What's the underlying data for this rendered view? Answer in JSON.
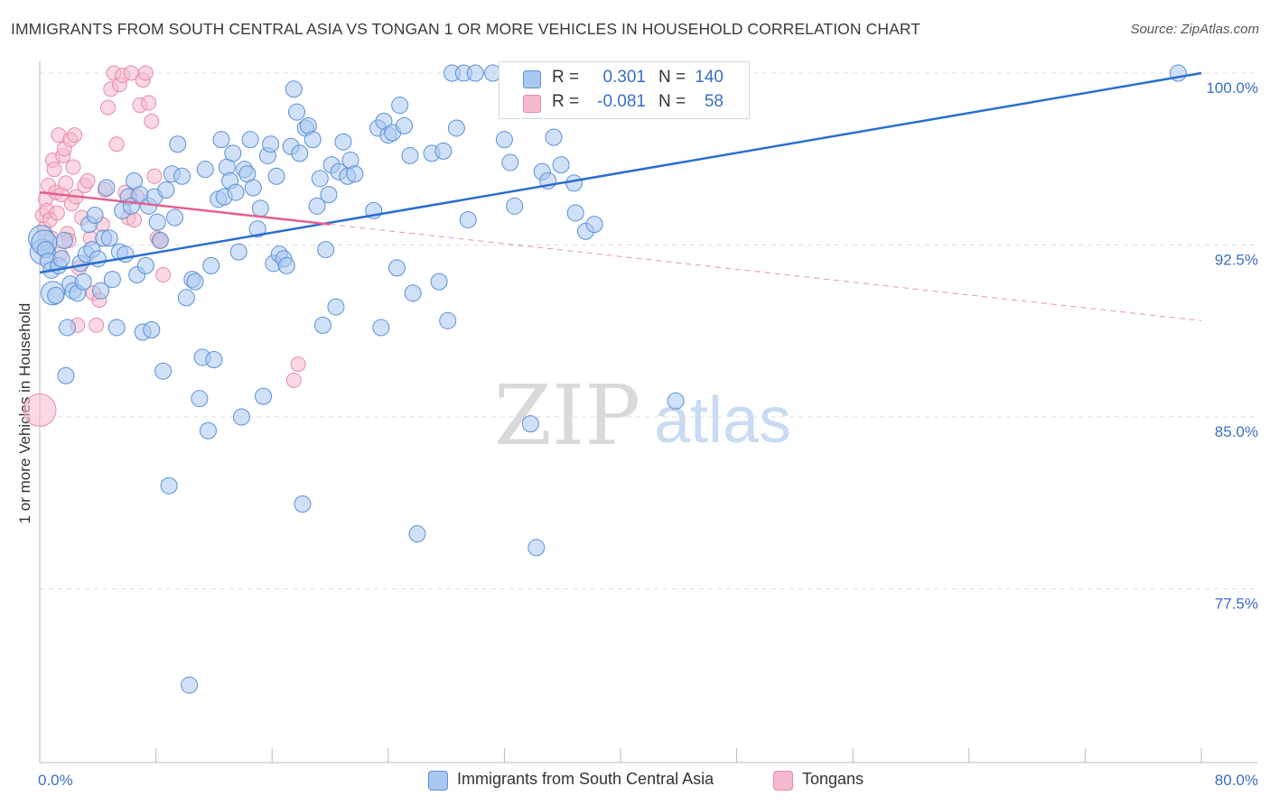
{
  "header": {
    "title": "IMMIGRANTS FROM SOUTH CENTRAL ASIA VS TONGAN 1 OR MORE VEHICLES IN HOUSEHOLD CORRELATION CHART",
    "source": "Source: ZipAtlas.com"
  },
  "watermark": {
    "zip": "ZIP",
    "atlas": "atlas"
  },
  "legend": {
    "rows": [
      {
        "r_label": "R =",
        "r_value": "0.301",
        "n_label": "N =",
        "n_value": "140"
      },
      {
        "r_label": "R =",
        "r_value": "-0.081",
        "n_label": "N =",
        "n_value": "58"
      }
    ]
  },
  "colors": {
    "blue_fill": "#a9c8f0",
    "blue_stroke": "#5b8fd6",
    "blue_line": "#2a6dd0",
    "pink_fill": "#f6b9cc",
    "pink_stroke": "#e88aa6",
    "pink_line": "#e4608e",
    "tick_label": "#3a6fc4",
    "grid": "#dddddd"
  },
  "chart_data": {
    "type": "scatter",
    "title": "IMMIGRANTS FROM SOUTH CENTRAL ASIA VS TONGAN 1 OR MORE VEHICLES IN HOUSEHOLD CORRELATION CHART",
    "xlabel": "",
    "ylabel": "1 or more Vehicles in Household",
    "xlim": [
      0,
      80
    ],
    "ylim": [
      71.5,
      101.5
    ],
    "x_tick_labels": [
      "0.0%",
      "80.0%"
    ],
    "y_ticks": [
      77.5,
      85.0,
      92.5,
      100.0
    ],
    "y_tick_labels": [
      "77.5%",
      "85.0%",
      "92.5%",
      "100.0%"
    ],
    "grid": true,
    "legend_position": "top-center",
    "series": [
      {
        "name": "Immigrants from South Central Asia",
        "color": "#a9c8f0",
        "trend": {
          "x": [
            0,
            80
          ],
          "y": [
            91.3,
            100.0
          ]
        },
        "points": [
          [
            0.1,
            92.8
          ],
          [
            0.2,
            92.2
          ],
          [
            0.3,
            92.6
          ],
          [
            0.4,
            92.3
          ],
          [
            0.6,
            91.8
          ],
          [
            0.8,
            91.4
          ],
          [
            0.9,
            90.4
          ],
          [
            1.1,
            90.3
          ],
          [
            1.3,
            91.6
          ],
          [
            1.5,
            91.9
          ],
          [
            1.7,
            92.7
          ],
          [
            1.8,
            86.8
          ],
          [
            1.9,
            88.9
          ],
          [
            2.1,
            90.8
          ],
          [
            2.3,
            90.5
          ],
          [
            2.6,
            90.4
          ],
          [
            2.8,
            91.7
          ],
          [
            3.0,
            90.9
          ],
          [
            3.2,
            92.1
          ],
          [
            3.4,
            93.4
          ],
          [
            3.6,
            92.3
          ],
          [
            3.8,
            93.8
          ],
          [
            4.0,
            91.9
          ],
          [
            4.2,
            90.5
          ],
          [
            4.4,
            92.8
          ],
          [
            4.6,
            95.0
          ],
          [
            4.8,
            92.8
          ],
          [
            5.0,
            91.0
          ],
          [
            5.3,
            88.9
          ],
          [
            5.5,
            92.2
          ],
          [
            5.7,
            94.0
          ],
          [
            5.9,
            92.1
          ],
          [
            6.1,
            94.6
          ],
          [
            6.3,
            94.2
          ],
          [
            6.5,
            95.3
          ],
          [
            6.7,
            91.2
          ],
          [
            6.9,
            94.7
          ],
          [
            7.1,
            88.7
          ],
          [
            7.3,
            91.6
          ],
          [
            7.5,
            94.2
          ],
          [
            7.7,
            88.8
          ],
          [
            7.9,
            94.6
          ],
          [
            8.1,
            93.5
          ],
          [
            8.3,
            92.7
          ],
          [
            8.5,
            87.0
          ],
          [
            8.7,
            94.9
          ],
          [
            8.9,
            82.0
          ],
          [
            9.1,
            95.6
          ],
          [
            9.3,
            93.7
          ],
          [
            9.5,
            96.9
          ],
          [
            9.8,
            95.5
          ],
          [
            10.1,
            90.2
          ],
          [
            10.3,
            73.3
          ],
          [
            10.5,
            91.0
          ],
          [
            10.7,
            90.9
          ],
          [
            11.0,
            85.8
          ],
          [
            11.2,
            87.6
          ],
          [
            11.4,
            95.8
          ],
          [
            11.6,
            84.4
          ],
          [
            11.8,
            91.6
          ],
          [
            12.0,
            87.5
          ],
          [
            12.3,
            94.5
          ],
          [
            12.5,
            97.1
          ],
          [
            12.7,
            94.6
          ],
          [
            12.9,
            95.9
          ],
          [
            13.1,
            95.3
          ],
          [
            13.3,
            96.5
          ],
          [
            13.5,
            94.8
          ],
          [
            13.7,
            92.2
          ],
          [
            13.9,
            85.0
          ],
          [
            14.1,
            95.8
          ],
          [
            14.3,
            95.6
          ],
          [
            14.5,
            97.1
          ],
          [
            14.7,
            95.0
          ],
          [
            15.0,
            93.2
          ],
          [
            15.2,
            94.1
          ],
          [
            15.4,
            85.9
          ],
          [
            15.7,
            96.4
          ],
          [
            15.9,
            96.9
          ],
          [
            16.1,
            91.7
          ],
          [
            16.3,
            95.5
          ],
          [
            16.5,
            92.1
          ],
          [
            16.8,
            91.9
          ],
          [
            17.0,
            91.6
          ],
          [
            17.3,
            96.8
          ],
          [
            17.5,
            99.3
          ],
          [
            17.7,
            98.3
          ],
          [
            17.9,
            96.5
          ],
          [
            18.1,
            81.2
          ],
          [
            18.3,
            97.6
          ],
          [
            18.5,
            97.7
          ],
          [
            18.8,
            97.1
          ],
          [
            19.1,
            94.2
          ],
          [
            19.3,
            95.4
          ],
          [
            19.5,
            89.0
          ],
          [
            19.7,
            92.3
          ],
          [
            19.9,
            94.7
          ],
          [
            20.1,
            96.0
          ],
          [
            20.4,
            89.8
          ],
          [
            20.6,
            95.7
          ],
          [
            20.9,
            97.0
          ],
          [
            21.2,
            95.5
          ],
          [
            21.4,
            96.2
          ],
          [
            21.7,
            95.6
          ],
          [
            23.0,
            94.0
          ],
          [
            23.3,
            97.6
          ],
          [
            23.5,
            88.9
          ],
          [
            23.7,
            97.9
          ],
          [
            24.0,
            97.3
          ],
          [
            24.3,
            97.4
          ],
          [
            24.6,
            91.5
          ],
          [
            24.8,
            98.6
          ],
          [
            25.1,
            97.7
          ],
          [
            25.5,
            96.4
          ],
          [
            25.7,
            90.4
          ],
          [
            26.0,
            79.9
          ],
          [
            27.0,
            96.5
          ],
          [
            27.5,
            90.9
          ],
          [
            27.8,
            96.6
          ],
          [
            28.1,
            89.2
          ],
          [
            28.4,
            100.0
          ],
          [
            28.7,
            97.6
          ],
          [
            29.2,
            100.0
          ],
          [
            29.5,
            93.6
          ],
          [
            30.0,
            100.0
          ],
          [
            31.2,
            100.0
          ],
          [
            32.0,
            97.1
          ],
          [
            32.4,
            96.1
          ],
          [
            32.7,
            94.2
          ],
          [
            33.8,
            84.7
          ],
          [
            34.2,
            79.3
          ],
          [
            34.6,
            95.7
          ],
          [
            35.0,
            95.3
          ],
          [
            35.4,
            97.2
          ],
          [
            35.9,
            96.0
          ],
          [
            36.5,
            100.0
          ],
          [
            36.8,
            95.2
          ],
          [
            36.9,
            93.9
          ],
          [
            37.6,
            93.1
          ],
          [
            38.2,
            93.4
          ],
          [
            43.8,
            85.7
          ],
          [
            78.4,
            100.0
          ]
        ]
      },
      {
        "name": "Tongans",
        "color": "#f6b9cc",
        "trend": {
          "x": [
            0,
            20
          ],
          "y": [
            94.8,
            93.4
          ],
          "dashed_extension_to": {
            "x": 80,
            "y": 89.2
          }
        },
        "points": [
          [
            0.0,
            85.3
          ],
          [
            0.2,
            93.8
          ],
          [
            0.3,
            93.2
          ],
          [
            0.4,
            94.5
          ],
          [
            0.5,
            94.0
          ],
          [
            0.6,
            95.1
          ],
          [
            0.7,
            93.6
          ],
          [
            0.8,
            92.8
          ],
          [
            0.9,
            96.2
          ],
          [
            1.0,
            95.8
          ],
          [
            1.1,
            94.8
          ],
          [
            1.2,
            93.9
          ],
          [
            1.3,
            97.3
          ],
          [
            1.4,
            92.1
          ],
          [
            1.5,
            94.7
          ],
          [
            1.6,
            96.4
          ],
          [
            1.7,
            96.7
          ],
          [
            1.8,
            95.2
          ],
          [
            1.9,
            93.0
          ],
          [
            2.0,
            92.7
          ],
          [
            2.1,
            97.1
          ],
          [
            2.2,
            94.3
          ],
          [
            2.3,
            95.9
          ],
          [
            2.4,
            97.3
          ],
          [
            2.5,
            94.6
          ],
          [
            2.6,
            89.0
          ],
          [
            2.7,
            91.5
          ],
          [
            2.9,
            93.7
          ],
          [
            3.1,
            95.1
          ],
          [
            3.3,
            95.3
          ],
          [
            3.5,
            92.8
          ],
          [
            3.7,
            90.4
          ],
          [
            3.9,
            89.0
          ],
          [
            4.1,
            90.1
          ],
          [
            4.3,
            93.4
          ],
          [
            4.5,
            94.9
          ],
          [
            4.7,
            98.5
          ],
          [
            4.9,
            99.3
          ],
          [
            5.1,
            100.0
          ],
          [
            5.3,
            96.9
          ],
          [
            5.5,
            99.5
          ],
          [
            5.7,
            99.9
          ],
          [
            5.9,
            94.8
          ],
          [
            6.1,
            93.7
          ],
          [
            6.3,
            100.0
          ],
          [
            6.5,
            93.6
          ],
          [
            6.7,
            94.6
          ],
          [
            6.9,
            98.6
          ],
          [
            7.1,
            99.7
          ],
          [
            7.3,
            100.0
          ],
          [
            7.5,
            98.7
          ],
          [
            7.7,
            97.9
          ],
          [
            7.9,
            95.5
          ],
          [
            8.1,
            92.8
          ],
          [
            8.3,
            92.7
          ],
          [
            8.5,
            91.2
          ],
          [
            17.5,
            86.6
          ],
          [
            17.8,
            87.3
          ]
        ]
      }
    ]
  },
  "bottom_legend": {
    "items": [
      {
        "label": "Immigrants from South Central Asia"
      },
      {
        "label": "Tongans"
      }
    ]
  }
}
